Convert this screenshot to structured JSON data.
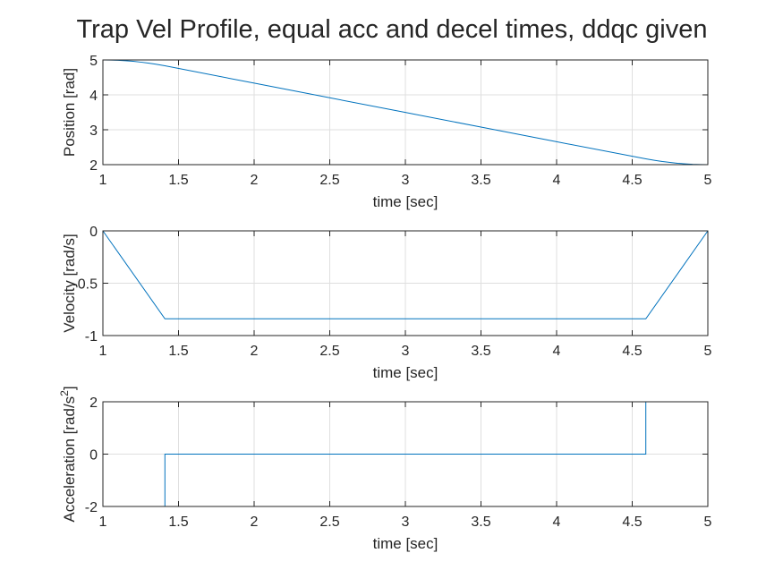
{
  "figure": {
    "title": "Trap Vel Profile, equal acc and decel times, ddqc given"
  },
  "chart_data": [
    {
      "type": "line",
      "xlabel": "time [sec]",
      "ylabel": "Position [rad]",
      "xlim": [
        1,
        5
      ],
      "ylim": [
        2,
        5
      ],
      "xticks": [
        1,
        1.5,
        2,
        2.5,
        3,
        3.5,
        4,
        4.5,
        5
      ],
      "yticks": [
        2,
        3,
        4,
        5
      ],
      "xtick_labels": [
        "1",
        "1.5",
        "2",
        "2.5",
        "3",
        "3.5",
        "4",
        "4.5",
        "5"
      ],
      "ytick_labels": [
        "2",
        "3",
        "4",
        "5"
      ],
      "grid": true,
      "line_color": "#0072BD",
      "series": [
        {
          "x": [
            1.0,
            1.05,
            1.1,
            1.15,
            1.2,
            1.25,
            1.3,
            1.35,
            1.41,
            2.0,
            2.5,
            3.0,
            3.5,
            4.0,
            4.59,
            4.65,
            4.7,
            4.75,
            4.8,
            4.85,
            4.9,
            4.95,
            5.0
          ],
          "y": [
            5.0,
            4.9975,
            4.99,
            4.9775,
            4.96,
            4.9375,
            4.91,
            4.8775,
            4.832,
            4.336,
            3.916,
            3.496,
            3.076,
            2.656,
            2.168,
            2.123,
            2.09,
            2.063,
            2.04,
            2.023,
            2.01,
            2.003,
            2.0
          ]
        }
      ]
    },
    {
      "type": "line",
      "xlabel": "time [sec]",
      "ylabel": "Velocity [rad/s]",
      "xlim": [
        1,
        5
      ],
      "ylim": [
        -1,
        0
      ],
      "xticks": [
        1,
        1.5,
        2,
        2.5,
        3,
        3.5,
        4,
        4.5,
        5
      ],
      "yticks": [
        -1,
        -0.5,
        0
      ],
      "xtick_labels": [
        "1",
        "1.5",
        "2",
        "2.5",
        "3",
        "3.5",
        "4",
        "4.5",
        "5"
      ],
      "ytick_labels": [
        "-1",
        "-0.5",
        "0"
      ],
      "grid": true,
      "line_color": "#0072BD",
      "series": [
        {
          "x": [
            1.0,
            1.41,
            4.59,
            5.0
          ],
          "y": [
            0.0,
            -0.84,
            -0.84,
            0.0
          ]
        }
      ]
    },
    {
      "type": "line",
      "xlabel": "time [sec]",
      "ylabel": "Acceleration [rad/s",
      "ylabel_superscript": "2",
      "ylabel_suffix": "]",
      "xlim": [
        1,
        5
      ],
      "ylim": [
        -2,
        2
      ],
      "xticks": [
        1,
        1.5,
        2,
        2.5,
        3,
        3.5,
        4,
        4.5,
        5
      ],
      "yticks": [
        -2,
        0,
        2
      ],
      "xtick_labels": [
        "1",
        "1.5",
        "2",
        "2.5",
        "3",
        "3.5",
        "4",
        "4.5",
        "5"
      ],
      "ytick_labels": [
        "-2",
        "0",
        "2"
      ],
      "grid": true,
      "line_color": "#0072BD",
      "series": [
        {
          "x": [
            1.0,
            1.41,
            1.41,
            4.59,
            4.59,
            5.0
          ],
          "y": [
            -2,
            -2,
            0,
            0,
            2,
            2
          ]
        }
      ]
    }
  ]
}
